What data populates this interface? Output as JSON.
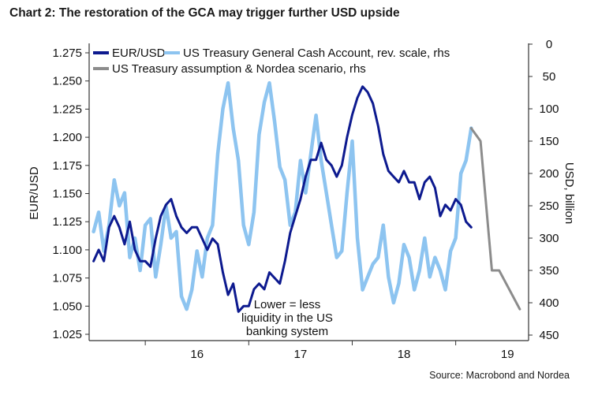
{
  "title": "Chart 2: The restoration of the GCA may trigger further USD upside",
  "source": "Source: Macrobond and Nordea",
  "colors": {
    "eurusd": "#0d1a8f",
    "gca": "#8dc4f0",
    "scenario": "#8c8c8c",
    "axis": "#333333"
  },
  "chart_data": {
    "type": "line",
    "title": "Chart 2: The restoration of the GCA may trigger further USD upside",
    "xlabel": "",
    "ylabel": "EUR/USD",
    "y2label": "USD, billion",
    "xlim": [
      2015.45,
      2019.75
    ],
    "ylim": [
      1.025,
      1.275
    ],
    "y2lim": [
      450,
      0
    ],
    "y2_reversed": true,
    "x_ticks": [
      2016,
      2017,
      2018,
      2019
    ],
    "x_tick_labels": [
      "16",
      "17",
      "18",
      "19"
    ],
    "y_ticks": [
      1.025,
      1.05,
      1.075,
      1.1,
      1.125,
      1.15,
      1.175,
      1.2,
      1.225,
      1.25,
      1.275
    ],
    "y_tick_labels": [
      "1.025",
      "1.050",
      "1.075",
      "1.100",
      "1.125",
      "1.150",
      "1.175",
      "1.200",
      "1.225",
      "1.250",
      "1.275"
    ],
    "y2_ticks": [
      0,
      50,
      100,
      150,
      200,
      250,
      300,
      350,
      400,
      450
    ],
    "y2_tick_labels": [
      "0",
      "50",
      "100",
      "150",
      "200",
      "250",
      "300",
      "350",
      "400",
      "450"
    ],
    "grid": false,
    "legend_position": "top-left",
    "annotation": "Lower = less\nliquidity in the US\nbanking system",
    "series": [
      {
        "name": "EUR/USD",
        "axis": "left",
        "color": "#0d1a8f",
        "x": [
          2015.5,
          2015.55,
          2015.6,
          2015.65,
          2015.7,
          2015.75,
          2015.8,
          2015.85,
          2015.9,
          2015.95,
          2016.0,
          2016.05,
          2016.1,
          2016.15,
          2016.2,
          2016.25,
          2016.3,
          2016.35,
          2016.4,
          2016.45,
          2016.5,
          2016.55,
          2016.6,
          2016.65,
          2016.7,
          2016.75,
          2016.8,
          2016.85,
          2016.9,
          2016.95,
          2017.0,
          2017.05,
          2017.1,
          2017.15,
          2017.2,
          2017.25,
          2017.3,
          2017.35,
          2017.4,
          2017.45,
          2017.5,
          2017.55,
          2017.6,
          2017.65,
          2017.7,
          2017.75,
          2017.8,
          2017.85,
          2017.9,
          2017.95,
          2018.0,
          2018.05,
          2018.1,
          2018.15,
          2018.2,
          2018.25,
          2018.3,
          2018.35,
          2018.4,
          2018.45,
          2018.5,
          2018.55,
          2018.6,
          2018.65,
          2018.7,
          2018.75,
          2018.8,
          2018.85,
          2018.9,
          2018.95,
          2019.0,
          2019.05,
          2019.1,
          2019.15
        ],
        "values": [
          1.09,
          1.1,
          1.09,
          1.12,
          1.13,
          1.12,
          1.105,
          1.125,
          1.1,
          1.09,
          1.09,
          1.085,
          1.11,
          1.13,
          1.14,
          1.145,
          1.13,
          1.12,
          1.115,
          1.12,
          1.12,
          1.11,
          1.1,
          1.11,
          1.105,
          1.08,
          1.06,
          1.07,
          1.045,
          1.05,
          1.05,
          1.065,
          1.07,
          1.065,
          1.08,
          1.075,
          1.07,
          1.09,
          1.115,
          1.13,
          1.145,
          1.165,
          1.18,
          1.18,
          1.195,
          1.18,
          1.175,
          1.165,
          1.175,
          1.2,
          1.22,
          1.235,
          1.245,
          1.24,
          1.23,
          1.21,
          1.185,
          1.17,
          1.165,
          1.16,
          1.17,
          1.16,
          1.16,
          1.145,
          1.16,
          1.165,
          1.155,
          1.13,
          1.14,
          1.135,
          1.145,
          1.14,
          1.125,
          1.12
        ]
      },
      {
        "name": "US Treasury General Cash Account, rev. scale, rhs",
        "axis": "right",
        "color": "#8dc4f0",
        "x": [
          2015.5,
          2015.55,
          2015.6,
          2015.65,
          2015.7,
          2015.75,
          2015.8,
          2015.85,
          2015.9,
          2015.95,
          2016.0,
          2016.05,
          2016.1,
          2016.15,
          2016.2,
          2016.25,
          2016.3,
          2016.35,
          2016.4,
          2016.45,
          2016.5,
          2016.55,
          2016.6,
          2016.65,
          2016.7,
          2016.75,
          2016.8,
          2016.85,
          2016.9,
          2016.95,
          2017.0,
          2017.05,
          2017.1,
          2017.15,
          2017.2,
          2017.25,
          2017.3,
          2017.35,
          2017.4,
          2017.45,
          2017.5,
          2017.55,
          2017.6,
          2017.65,
          2017.7,
          2017.75,
          2017.8,
          2017.85,
          2017.9,
          2017.95,
          2018.0,
          2018.05,
          2018.1,
          2018.15,
          2018.2,
          2018.25,
          2018.3,
          2018.35,
          2018.4,
          2018.45,
          2018.5,
          2018.55,
          2018.6,
          2018.65,
          2018.7,
          2018.75,
          2018.8,
          2018.85,
          2018.9,
          2018.95,
          2019.0,
          2019.05,
          2019.1,
          2019.15
        ],
        "values": [
          290,
          260,
          320,
          280,
          210,
          250,
          230,
          330,
          300,
          350,
          280,
          270,
          360,
          310,
          250,
          300,
          290,
          390,
          410,
          380,
          320,
          360,
          300,
          280,
          170,
          100,
          60,
          130,
          180,
          280,
          310,
          260,
          140,
          90,
          60,
          120,
          190,
          210,
          280,
          260,
          180,
          230,
          170,
          110,
          180,
          230,
          280,
          330,
          320,
          230,
          150,
          300,
          380,
          360,
          340,
          330,
          280,
          360,
          400,
          370,
          310,
          330,
          380,
          350,
          300,
          360,
          330,
          350,
          380,
          320,
          300,
          200,
          180,
          130
        ]
      },
      {
        "name": "US Treasury assumption & Nordea scenario, rhs",
        "axis": "right",
        "color": "#8c8c8c",
        "x": [
          2019.15,
          2019.24,
          2019.35,
          2019.42,
          2019.52,
          2019.62
        ],
        "values": [
          130,
          150,
          350,
          350,
          380,
          410
        ]
      }
    ]
  }
}
